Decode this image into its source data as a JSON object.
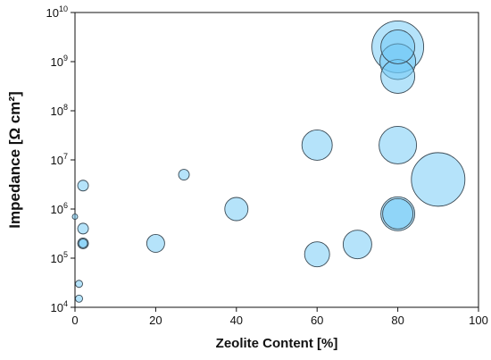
{
  "chart_data": {
    "type": "scatter",
    "title": "",
    "xlabel": "Zeolite Content [%]",
    "ylabel": "Impedance [Ω cm²]",
    "xlim": [
      0,
      100
    ],
    "ylim_log10": [
      4,
      10
    ],
    "y_scale": "log",
    "grid": false,
    "legend": "none",
    "colors": {
      "bubble_fill": "#6cc8f5",
      "bubble_stroke": "#3a4a55",
      "axis": "#111111"
    },
    "x_ticks": [
      "0",
      "20",
      "40",
      "60",
      "80",
      "100"
    ],
    "y_ticks": [
      {
        "base": "10",
        "exp": "4"
      },
      {
        "base": "10",
        "exp": "5"
      },
      {
        "base": "10",
        "exp": "6"
      },
      {
        "base": "10",
        "exp": "7"
      },
      {
        "base": "10",
        "exp": "8"
      },
      {
        "base": "10",
        "exp": "9"
      },
      {
        "base": "10",
        "exp": "10"
      }
    ],
    "points": [
      {
        "x": 0,
        "y": 700000,
        "r": 3
      },
      {
        "x": 1,
        "y": 30000,
        "r": 4
      },
      {
        "x": 1,
        "y": 15000,
        "r": 4
      },
      {
        "x": 2,
        "y": 3000000,
        "r": 6
      },
      {
        "x": 2,
        "y": 400000,
        "r": 6
      },
      {
        "x": 2,
        "y": 200000,
        "r": 6
      },
      {
        "x": 2,
        "y": 200000,
        "r": 5
      },
      {
        "x": 20,
        "y": 200000,
        "r": 10
      },
      {
        "x": 27,
        "y": 5000000,
        "r": 6
      },
      {
        "x": 40,
        "y": 1000000,
        "r": 13
      },
      {
        "x": 60,
        "y": 20000000,
        "r": 17
      },
      {
        "x": 60,
        "y": 120000,
        "r": 14
      },
      {
        "x": 70,
        "y": 190000,
        "r": 16
      },
      {
        "x": 80,
        "y": 2000000000,
        "r": 29
      },
      {
        "x": 80,
        "y": 1000000000,
        "r": 20
      },
      {
        "x": 80,
        "y": 500000000,
        "r": 19
      },
      {
        "x": 80,
        "y": 2000000000,
        "r": 19
      },
      {
        "x": 80,
        "y": 20000000,
        "r": 21
      },
      {
        "x": 80,
        "y": 800000,
        "r": 19
      },
      {
        "x": 80,
        "y": 800000,
        "r": 17
      },
      {
        "x": 90,
        "y": 4000000,
        "r": 30
      }
    ]
  }
}
